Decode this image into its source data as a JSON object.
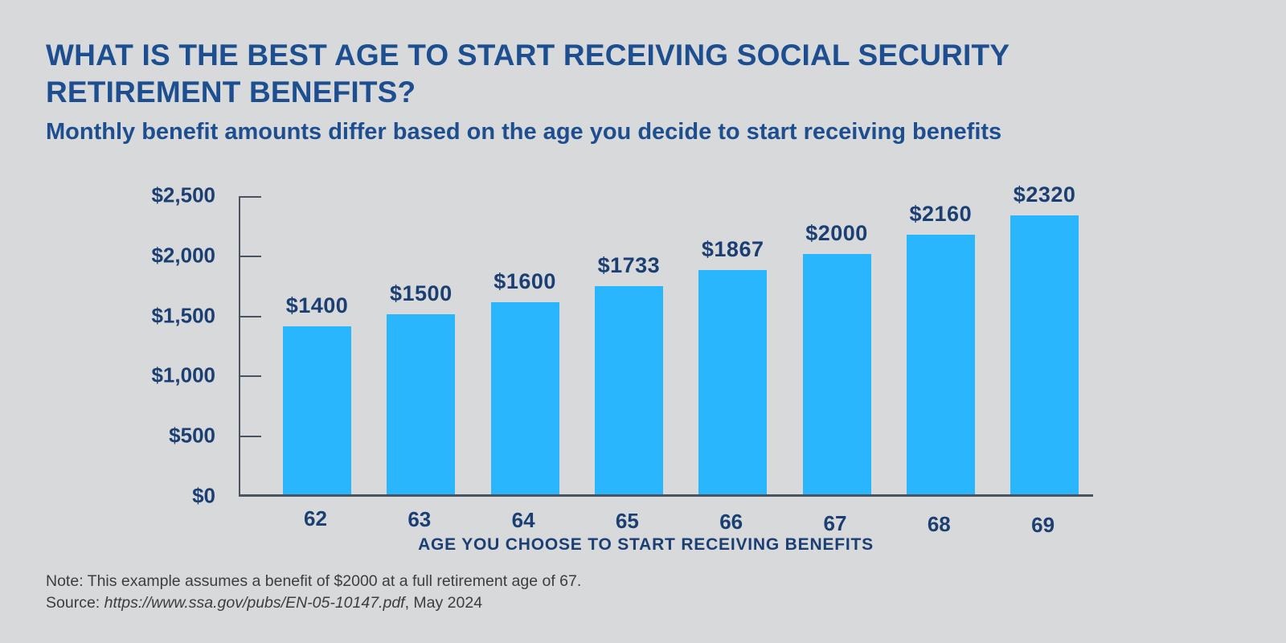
{
  "header": {
    "title": "WHAT IS THE BEST AGE TO START RECEIVING SOCIAL SECURITY RETIREMENT BENEFITS?",
    "subtitle": "Monthly benefit amounts differ based on the age you decide to start receiving benefits"
  },
  "chart_data": {
    "type": "bar",
    "title": "",
    "categories": [
      "62",
      "63",
      "64",
      "65",
      "66",
      "67",
      "68",
      "69"
    ],
    "values": [
      1400,
      1500,
      1600,
      1733,
      1867,
      2000,
      2160,
      2320
    ],
    "bar_labels": [
      "$1400",
      "$1500",
      "$1600",
      "$1733",
      "$1867",
      "$2000",
      "$2160",
      "$2320"
    ],
    "xlabel": "AGE YOU CHOOSE TO START RECEIVING BENEFITS",
    "ylabel": "",
    "ylim": [
      0,
      2500
    ],
    "yticks": [
      0,
      500,
      1000,
      1500,
      2000,
      2500
    ],
    "ytick_labels": [
      "$0",
      "$500",
      "$1,000",
      "$1,500",
      "$2,000",
      "$2,500"
    ],
    "grid": false,
    "legend": null
  },
  "footer": {
    "note": "Note: This example assumes a benefit of $2000 at a full retirement age of 67.",
    "source_prefix": "Source: ",
    "source_url": "https://www.ssa.gov/pubs/EN-05-10147.pdf",
    "source_suffix": ", May 2024"
  },
  "colors": {
    "background": "#d8d9da",
    "heading": "#1d4e90",
    "label": "#1b3f73",
    "bar": "#29b6fc",
    "axis": "#4a5461",
    "note_text": "#3d3d3d"
  }
}
